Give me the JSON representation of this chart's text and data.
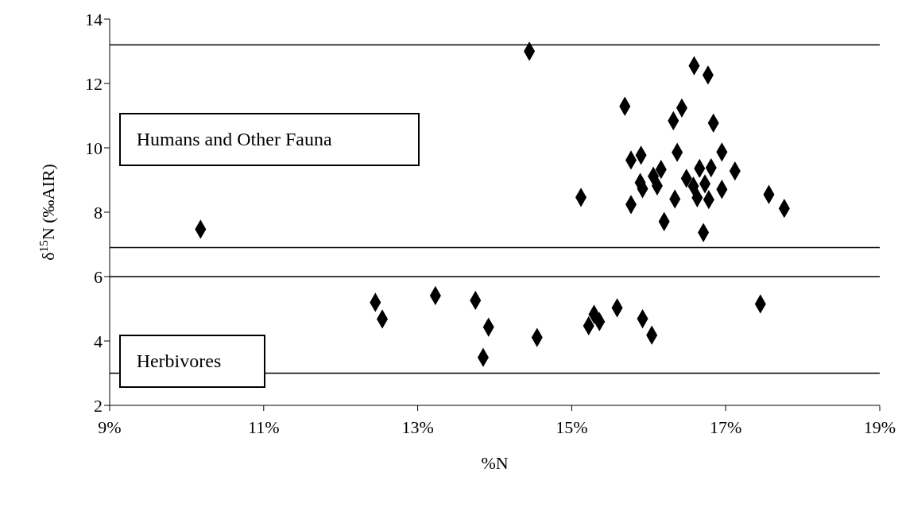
{
  "chart_data": {
    "type": "scatter",
    "xlabel": "%N",
    "ylabel": "δ$^{15}$N (‰AIR)",
    "annotations": [
      "Humans and Other Fauna",
      "Herbivores"
    ],
    "xlim": [
      9,
      19
    ],
    "xticks": [
      {
        "value": 9,
        "label": "9%"
      },
      {
        "value": 11,
        "label": "11%"
      },
      {
        "value": 13,
        "label": "13%"
      },
      {
        "value": 15,
        "label": "15%"
      },
      {
        "value": 17,
        "label": "17%"
      },
      {
        "value": 19,
        "label": "19%"
      }
    ],
    "ylim": [
      2,
      14
    ],
    "yticks": [
      2,
      4,
      6,
      8,
      10,
      12,
      14
    ],
    "grid": false,
    "marker": "diamond",
    "legend": false,
    "ref_lines": [
      {
        "axis": "y",
        "value": 13.2,
        "color": "#000000"
      },
      {
        "axis": "y",
        "value": 6.9,
        "color": "#000000"
      },
      {
        "axis": "y",
        "value": 6.0,
        "color": "#000000"
      },
      {
        "axis": "y",
        "value": 3.0,
        "color": "#000000"
      }
    ],
    "series": [
      {
        "color": "#000000",
        "x": [
          10.18,
          14.45,
          16.59,
          16.77,
          15.69,
          16.43,
          16.32,
          16.84,
          16.37,
          16.95,
          15.9,
          15.77,
          16.16,
          16.06,
          16.11,
          15.89,
          15.92,
          16.66,
          16.81,
          16.49,
          16.58,
          16.73,
          17.12,
          16.95,
          16.34,
          16.63,
          16.78,
          15.12,
          15.77,
          17.56,
          17.76,
          16.2,
          16.71,
          12.45,
          12.54,
          13.23,
          13.75,
          13.92,
          13.85,
          14.55,
          15.29,
          15.22,
          15.36,
          15.59,
          15.92,
          16.04,
          17.45
        ],
        "values": [
          7.47,
          13.0,
          12.55,
          12.26,
          11.29,
          11.24,
          10.84,
          10.77,
          9.86,
          9.87,
          9.77,
          9.62,
          9.33,
          9.12,
          8.82,
          8.92,
          8.73,
          9.36,
          9.38,
          9.05,
          8.81,
          8.88,
          9.28,
          8.71,
          8.41,
          8.45,
          8.39,
          8.46,
          8.24,
          8.55,
          8.12,
          7.71,
          7.37,
          5.2,
          4.68,
          5.41,
          5.26,
          4.43,
          3.49,
          4.11,
          4.83,
          4.47,
          4.6,
          5.03,
          4.69,
          4.18,
          5.15
        ]
      }
    ]
  }
}
